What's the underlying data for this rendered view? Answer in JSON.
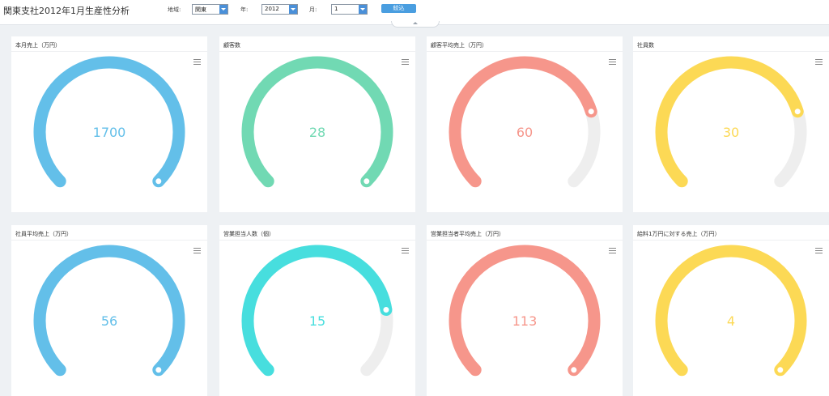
{
  "header": {
    "title": "関東支社2012年1月生産性分析",
    "region_label": "地域:",
    "region_value": "関東",
    "year_label": "年:",
    "year_value": "2012",
    "month_label": "月:",
    "month_value": "1",
    "search_label": "絞込"
  },
  "colors": {
    "blue": "#63bfe9",
    "green": "#71d9b3",
    "salmon": "#f6968b",
    "yellow": "#fcd955",
    "cyan": "#47dede",
    "track": "#eeeeee"
  },
  "cards": [
    {
      "title": "本月売上（万円）",
      "value": "1700",
      "fraction": 1.0,
      "color": "#63bfe9"
    },
    {
      "title": "顧客数",
      "value": "28",
      "fraction": 1.0,
      "color": "#71d9b3"
    },
    {
      "title": "顧客平均売上（万円）",
      "value": "60",
      "fraction": 0.77,
      "color": "#f6968b"
    },
    {
      "title": "社員数",
      "value": "30",
      "fraction": 0.77,
      "color": "#fcd955"
    },
    {
      "title": "社員平均売上（万円）",
      "value": "56",
      "fraction": 1.0,
      "color": "#63bfe9"
    },
    {
      "title": "営業担当人数（個）",
      "value": "15",
      "fraction": 0.8,
      "color": "#47dede"
    },
    {
      "title": "営業担当者平均売上（万円）",
      "value": "113",
      "fraction": 1.0,
      "color": "#f6968b"
    },
    {
      "title": "給料1万円に対する売上（万円）",
      "value": "4",
      "fraction": 1.0,
      "color": "#fcd955"
    }
  ]
}
